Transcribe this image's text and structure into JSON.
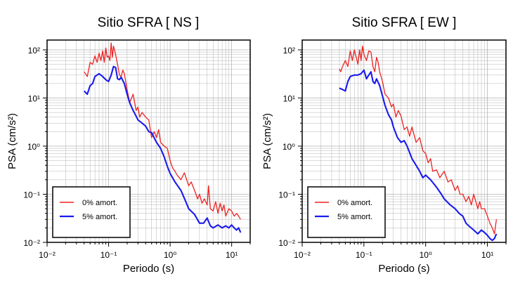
{
  "chart_data": [
    {
      "type": "line",
      "title": "Sitio SFRA [ NS ]",
      "xlabel": "Periodo (s)",
      "ylabel": "PSA (cm/s²)",
      "xscale": "log",
      "yscale": "log",
      "xlim": [
        0.01,
        20
      ],
      "ylim": [
        0.01,
        160
      ],
      "grid": true,
      "legend_position": "bottom-left",
      "x_tick_labels": [
        "10⁻²",
        "10⁻¹",
        "10⁰",
        "10¹"
      ],
      "y_tick_labels": [
        "10⁻²",
        "10⁻¹",
        "10⁰",
        "10¹",
        "10²"
      ],
      "series": [
        {
          "name": "0% amort.",
          "color": "#ee2222",
          "x": [
            0.04,
            0.045,
            0.05,
            0.055,
            0.06,
            0.065,
            0.07,
            0.075,
            0.08,
            0.085,
            0.09,
            0.095,
            0.1,
            0.105,
            0.11,
            0.115,
            0.12,
            0.13,
            0.14,
            0.15,
            0.16,
            0.17,
            0.18,
            0.2,
            0.22,
            0.25,
            0.28,
            0.3,
            0.32,
            0.35,
            0.4,
            0.45,
            0.5,
            0.55,
            0.6,
            0.65,
            0.7,
            0.8,
            0.9,
            1.0,
            1.1,
            1.2,
            1.3,
            1.5,
            1.7,
            2.0,
            2.2,
            2.5,
            2.8,
            3.0,
            3.3,
            3.6,
            4.0,
            4.2,
            4.5,
            5.0,
            5.5,
            6.0,
            6.5,
            7.0,
            7.5,
            8.0,
            9.0,
            10.0,
            11.0,
            12.0,
            13.0,
            14.0
          ],
          "y": [
            35,
            28,
            55,
            50,
            75,
            55,
            85,
            60,
            95,
            55,
            110,
            70,
            75,
            60,
            140,
            70,
            120,
            80,
            50,
            30,
            28,
            38,
            32,
            15,
            8,
            12,
            5.5,
            6.5,
            4,
            5,
            4,
            3.5,
            1.5,
            2,
            1.5,
            2.2,
            1.2,
            1,
            0.9,
            0.5,
            0.35,
            0.3,
            0.25,
            0.2,
            0.28,
            0.15,
            0.18,
            0.12,
            0.08,
            0.1,
            0.065,
            0.08,
            0.06,
            0.15,
            0.05,
            0.045,
            0.07,
            0.04,
            0.065,
            0.045,
            0.06,
            0.035,
            0.05,
            0.045,
            0.035,
            0.04,
            0.035,
            0.03
          ]
        },
        {
          "name": "5% amort.",
          "color": "#1a1aee",
          "x": [
            0.04,
            0.045,
            0.05,
            0.055,
            0.06,
            0.07,
            0.08,
            0.09,
            0.1,
            0.11,
            0.12,
            0.13,
            0.14,
            0.15,
            0.16,
            0.18,
            0.2,
            0.22,
            0.25,
            0.28,
            0.3,
            0.35,
            0.4,
            0.45,
            0.5,
            0.6,
            0.7,
            0.8,
            0.9,
            1.0,
            1.2,
            1.5,
            1.8,
            2.0,
            2.5,
            3.0,
            3.5,
            4.0,
            4.5,
            5.0,
            6.0,
            7.0,
            8.0,
            9.0,
            10.0,
            11.0,
            12.0,
            13.0,
            14.0
          ],
          "y": [
            14,
            12,
            18,
            20,
            28,
            32,
            28,
            24,
            22,
            30,
            45,
            43,
            25,
            24,
            27,
            20,
            12,
            8,
            5.5,
            4.2,
            3.5,
            3,
            2.6,
            2,
            1.9,
            1.2,
            0.9,
            0.6,
            0.38,
            0.27,
            0.18,
            0.12,
            0.07,
            0.05,
            0.038,
            0.025,
            0.025,
            0.032,
            0.022,
            0.02,
            0.023,
            0.02,
            0.022,
            0.02,
            0.023,
            0.02,
            0.018,
            0.02,
            0.016
          ]
        }
      ]
    },
    {
      "type": "line",
      "title": "Sitio SFRA [ EW ]",
      "xlabel": "Periodo (s)",
      "ylabel": "PSA (cm/s²)",
      "xscale": "log",
      "yscale": "log",
      "xlim": [
        0.01,
        20
      ],
      "ylim": [
        0.01,
        160
      ],
      "grid": true,
      "legend_position": "bottom-left",
      "x_tick_labels": [
        "10⁻²",
        "10⁻¹",
        "10⁰",
        "10¹"
      ],
      "y_tick_labels": [
        "10⁻²",
        "10⁻¹",
        "10⁰",
        "10¹",
        "10²"
      ],
      "series": [
        {
          "name": "0% amort.",
          "color": "#ee2222",
          "x": [
            0.04,
            0.042,
            0.045,
            0.05,
            0.055,
            0.06,
            0.065,
            0.07,
            0.075,
            0.08,
            0.085,
            0.09,
            0.095,
            0.1,
            0.11,
            0.12,
            0.13,
            0.14,
            0.15,
            0.16,
            0.17,
            0.18,
            0.2,
            0.22,
            0.25,
            0.28,
            0.3,
            0.33,
            0.36,
            0.4,
            0.45,
            0.5,
            0.55,
            0.6,
            0.7,
            0.8,
            0.9,
            1.0,
            1.1,
            1.2,
            1.3,
            1.5,
            1.7,
            2.0,
            2.3,
            2.6,
            3.0,
            3.3,
            3.6,
            4.0,
            4.5,
            5.0,
            5.5,
            6.0,
            6.5,
            7.0,
            7.5,
            8.0,
            9.0,
            10.0,
            11.0,
            12.0,
            13.0,
            14.0
          ],
          "y": [
            40,
            35,
            45,
            60,
            45,
            95,
            60,
            100,
            70,
            50,
            100,
            60,
            120,
            80,
            60,
            95,
            90,
            45,
            35,
            70,
            55,
            35,
            22,
            12,
            10,
            6.5,
            7.5,
            4,
            5.5,
            4.2,
            2.2,
            2.5,
            1.6,
            2.5,
            1.2,
            1.5,
            0.8,
            0.7,
            0.45,
            0.55,
            0.3,
            0.32,
            0.22,
            0.3,
            0.18,
            0.2,
            0.12,
            0.15,
            0.1,
            0.1,
            0.07,
            0.09,
            0.06,
            0.1,
            0.07,
            0.05,
            0.07,
            0.05,
            0.05,
            0.035,
            0.025,
            0.02,
            0.015,
            0.03
          ]
        },
        {
          "name": "5% amort.",
          "color": "#1a1aee",
          "x": [
            0.04,
            0.045,
            0.05,
            0.055,
            0.06,
            0.07,
            0.08,
            0.09,
            0.1,
            0.11,
            0.12,
            0.13,
            0.14,
            0.15,
            0.16,
            0.18,
            0.2,
            0.22,
            0.25,
            0.28,
            0.3,
            0.35,
            0.4,
            0.45,
            0.5,
            0.6,
            0.7,
            0.8,
            0.9,
            1.0,
            1.2,
            1.5,
            1.8,
            2.0,
            2.5,
            3.0,
            3.5,
            4.0,
            4.5,
            5.0,
            6.0,
            7.0,
            8.0,
            9.0,
            10.0,
            11.0,
            12.0,
            13.0,
            14.0
          ],
          "y": [
            16,
            15,
            14,
            22,
            28,
            30,
            30,
            32,
            38,
            25,
            30,
            35,
            22,
            20,
            25,
            18,
            11,
            7,
            4.5,
            3.5,
            2.5,
            1.5,
            1.2,
            1.3,
            1.0,
            0.55,
            0.4,
            0.3,
            0.22,
            0.25,
            0.2,
            0.14,
            0.1,
            0.08,
            0.06,
            0.05,
            0.04,
            0.035,
            0.025,
            0.022,
            0.018,
            0.015,
            0.018,
            0.016,
            0.014,
            0.012,
            0.011,
            0.012,
            0.015
          ]
        }
      ]
    }
  ]
}
